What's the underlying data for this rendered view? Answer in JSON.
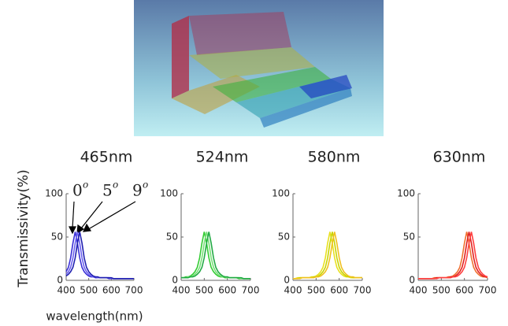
{
  "y_label": "Transmissivity(%)",
  "x_label": "wavelength(nm)",
  "chart_data": [
    {
      "type": "line",
      "title": "465nm",
      "x": [
        400,
        410,
        420,
        430,
        440,
        450,
        460,
        470,
        480,
        490,
        500,
        510,
        520,
        530,
        540,
        550,
        560,
        570,
        580,
        590,
        600,
        610,
        620,
        630,
        640,
        650,
        660,
        670,
        680,
        690,
        700
      ],
      "xlim": [
        400,
        700
      ],
      "xticks": [
        400,
        500,
        600,
        700
      ],
      "ylim": [
        0,
        100
      ],
      "yticks": [
        0,
        50,
        100
      ],
      "annotations": [
        {
          "text": "0",
          "sup": "o"
        },
        {
          "text": "5",
          "sup": "o"
        },
        {
          "text": "9",
          "sup": "o"
        }
      ],
      "series": [
        {
          "color": "#3a2fd6",
          "values": [
            10,
            15,
            26,
            43,
            56,
            43,
            26,
            15,
            10,
            7,
            5,
            4,
            4,
            3,
            3,
            3,
            3,
            3,
            3,
            2,
            2,
            2,
            2,
            2,
            2,
            2,
            2,
            2,
            2,
            2,
            2
          ]
        },
        {
          "color": "#6a5ff0",
          "values": [
            7,
            10,
            15,
            26,
            43,
            56,
            43,
            26,
            15,
            10,
            7,
            5,
            4,
            4,
            3,
            3,
            3,
            3,
            3,
            3,
            2,
            2,
            2,
            2,
            2,
            2,
            2,
            2,
            2,
            2,
            2
          ]
        },
        {
          "color": "#2020b0",
          "values": [
            5,
            7,
            10,
            15,
            26,
            43,
            56,
            43,
            26,
            15,
            10,
            7,
            5,
            4,
            4,
            3,
            3,
            3,
            3,
            3,
            3,
            2,
            2,
            2,
            2,
            2,
            2,
            2,
            2,
            2,
            2
          ]
        }
      ]
    },
    {
      "type": "line",
      "title": "524nm",
      "x": [
        400,
        410,
        420,
        430,
        440,
        450,
        460,
        470,
        480,
        490,
        500,
        510,
        520,
        530,
        540,
        550,
        560,
        570,
        580,
        590,
        600,
        610,
        620,
        630,
        640,
        650,
        660,
        670,
        680,
        690,
        700
      ],
      "xlim": [
        400,
        700
      ],
      "xticks": [
        400,
        500,
        600,
        700
      ],
      "ylim": [
        0,
        100
      ],
      "yticks": [
        0,
        50,
        100
      ],
      "series": [
        {
          "color": "#33cc33",
          "values": [
            3,
            3,
            4,
            4,
            5,
            7,
            10,
            15,
            26,
            43,
            56,
            43,
            26,
            15,
            10,
            7,
            5,
            4,
            4,
            3,
            3,
            3,
            3,
            3,
            3,
            2,
            2,
            2,
            2,
            2,
            2
          ]
        },
        {
          "color": "#77e077",
          "values": [
            3,
            3,
            3,
            4,
            4,
            5,
            7,
            10,
            15,
            26,
            43,
            56,
            43,
            26,
            15,
            10,
            7,
            5,
            4,
            4,
            3,
            3,
            3,
            3,
            3,
            3,
            2,
            2,
            2,
            2,
            2
          ]
        },
        {
          "color": "#22aa44",
          "values": [
            3,
            3,
            3,
            3,
            4,
            4,
            5,
            7,
            10,
            15,
            26,
            43,
            56,
            43,
            26,
            15,
            10,
            7,
            5,
            4,
            4,
            3,
            3,
            3,
            3,
            3,
            3,
            2,
            2,
            2,
            2
          ]
        }
      ]
    },
    {
      "type": "line",
      "title": "580nm",
      "x": [
        400,
        410,
        420,
        430,
        440,
        450,
        460,
        470,
        480,
        490,
        500,
        510,
        520,
        530,
        540,
        550,
        560,
        570,
        580,
        590,
        600,
        610,
        620,
        630,
        640,
        650,
        660,
        670,
        680,
        690,
        700
      ],
      "xlim": [
        400,
        700
      ],
      "xticks": [
        400,
        500,
        600,
        700
      ],
      "ylim": [
        0,
        100
      ],
      "yticks": [
        0,
        50,
        100
      ],
      "series": [
        {
          "color": "#e8e020",
          "values": [
            2,
            2,
            3,
            3,
            3,
            3,
            3,
            3,
            4,
            4,
            5,
            7,
            10,
            15,
            26,
            43,
            56,
            43,
            26,
            15,
            10,
            7,
            5,
            4,
            4,
            3,
            3,
            3,
            3,
            3,
            3
          ]
        },
        {
          "color": "#c8d400",
          "values": [
            2,
            2,
            2,
            3,
            3,
            3,
            3,
            3,
            3,
            4,
            4,
            5,
            7,
            10,
            15,
            26,
            43,
            56,
            43,
            26,
            15,
            10,
            7,
            5,
            4,
            4,
            3,
            3,
            3,
            3,
            3
          ]
        },
        {
          "color": "#f0c020",
          "values": [
            2,
            2,
            2,
            2,
            3,
            3,
            3,
            3,
            3,
            3,
            4,
            4,
            5,
            7,
            10,
            15,
            26,
            43,
            56,
            43,
            26,
            15,
            10,
            7,
            5,
            4,
            4,
            3,
            3,
            3,
            3
          ]
        }
      ]
    },
    {
      "type": "line",
      "title": "630nm",
      "x": [
        400,
        410,
        420,
        430,
        440,
        450,
        460,
        470,
        480,
        490,
        500,
        510,
        520,
        530,
        540,
        550,
        560,
        570,
        580,
        590,
        600,
        610,
        620,
        630,
        640,
        650,
        660,
        670,
        680,
        690,
        700
      ],
      "xlim": [
        400,
        700
      ],
      "xticks": [
        400,
        500,
        600,
        700
      ],
      "ylim": [
        0,
        100
      ],
      "yticks": [
        0,
        50,
        100
      ],
      "series": [
        {
          "color": "#f07030",
          "values": [
            2,
            2,
            2,
            2,
            2,
            2,
            2,
            3,
            3,
            3,
            3,
            3,
            3,
            4,
            4,
            5,
            7,
            10,
            15,
            26,
            43,
            56,
            43,
            26,
            15,
            10,
            7,
            5,
            4,
            4,
            3
          ]
        },
        {
          "color": "#e02020",
          "values": [
            2,
            2,
            2,
            2,
            2,
            2,
            2,
            2,
            3,
            3,
            3,
            3,
            3,
            3,
            4,
            4,
            5,
            7,
            10,
            15,
            26,
            43,
            56,
            43,
            26,
            15,
            10,
            7,
            5,
            4,
            4
          ]
        },
        {
          "color": "#ff4040",
          "values": [
            2,
            2,
            2,
            2,
            2,
            2,
            2,
            2,
            2,
            3,
            3,
            3,
            3,
            3,
            3,
            4,
            4,
            5,
            7,
            10,
            15,
            26,
            43,
            56,
            43,
            26,
            15,
            10,
            7,
            5,
            4
          ]
        }
      ]
    }
  ]
}
